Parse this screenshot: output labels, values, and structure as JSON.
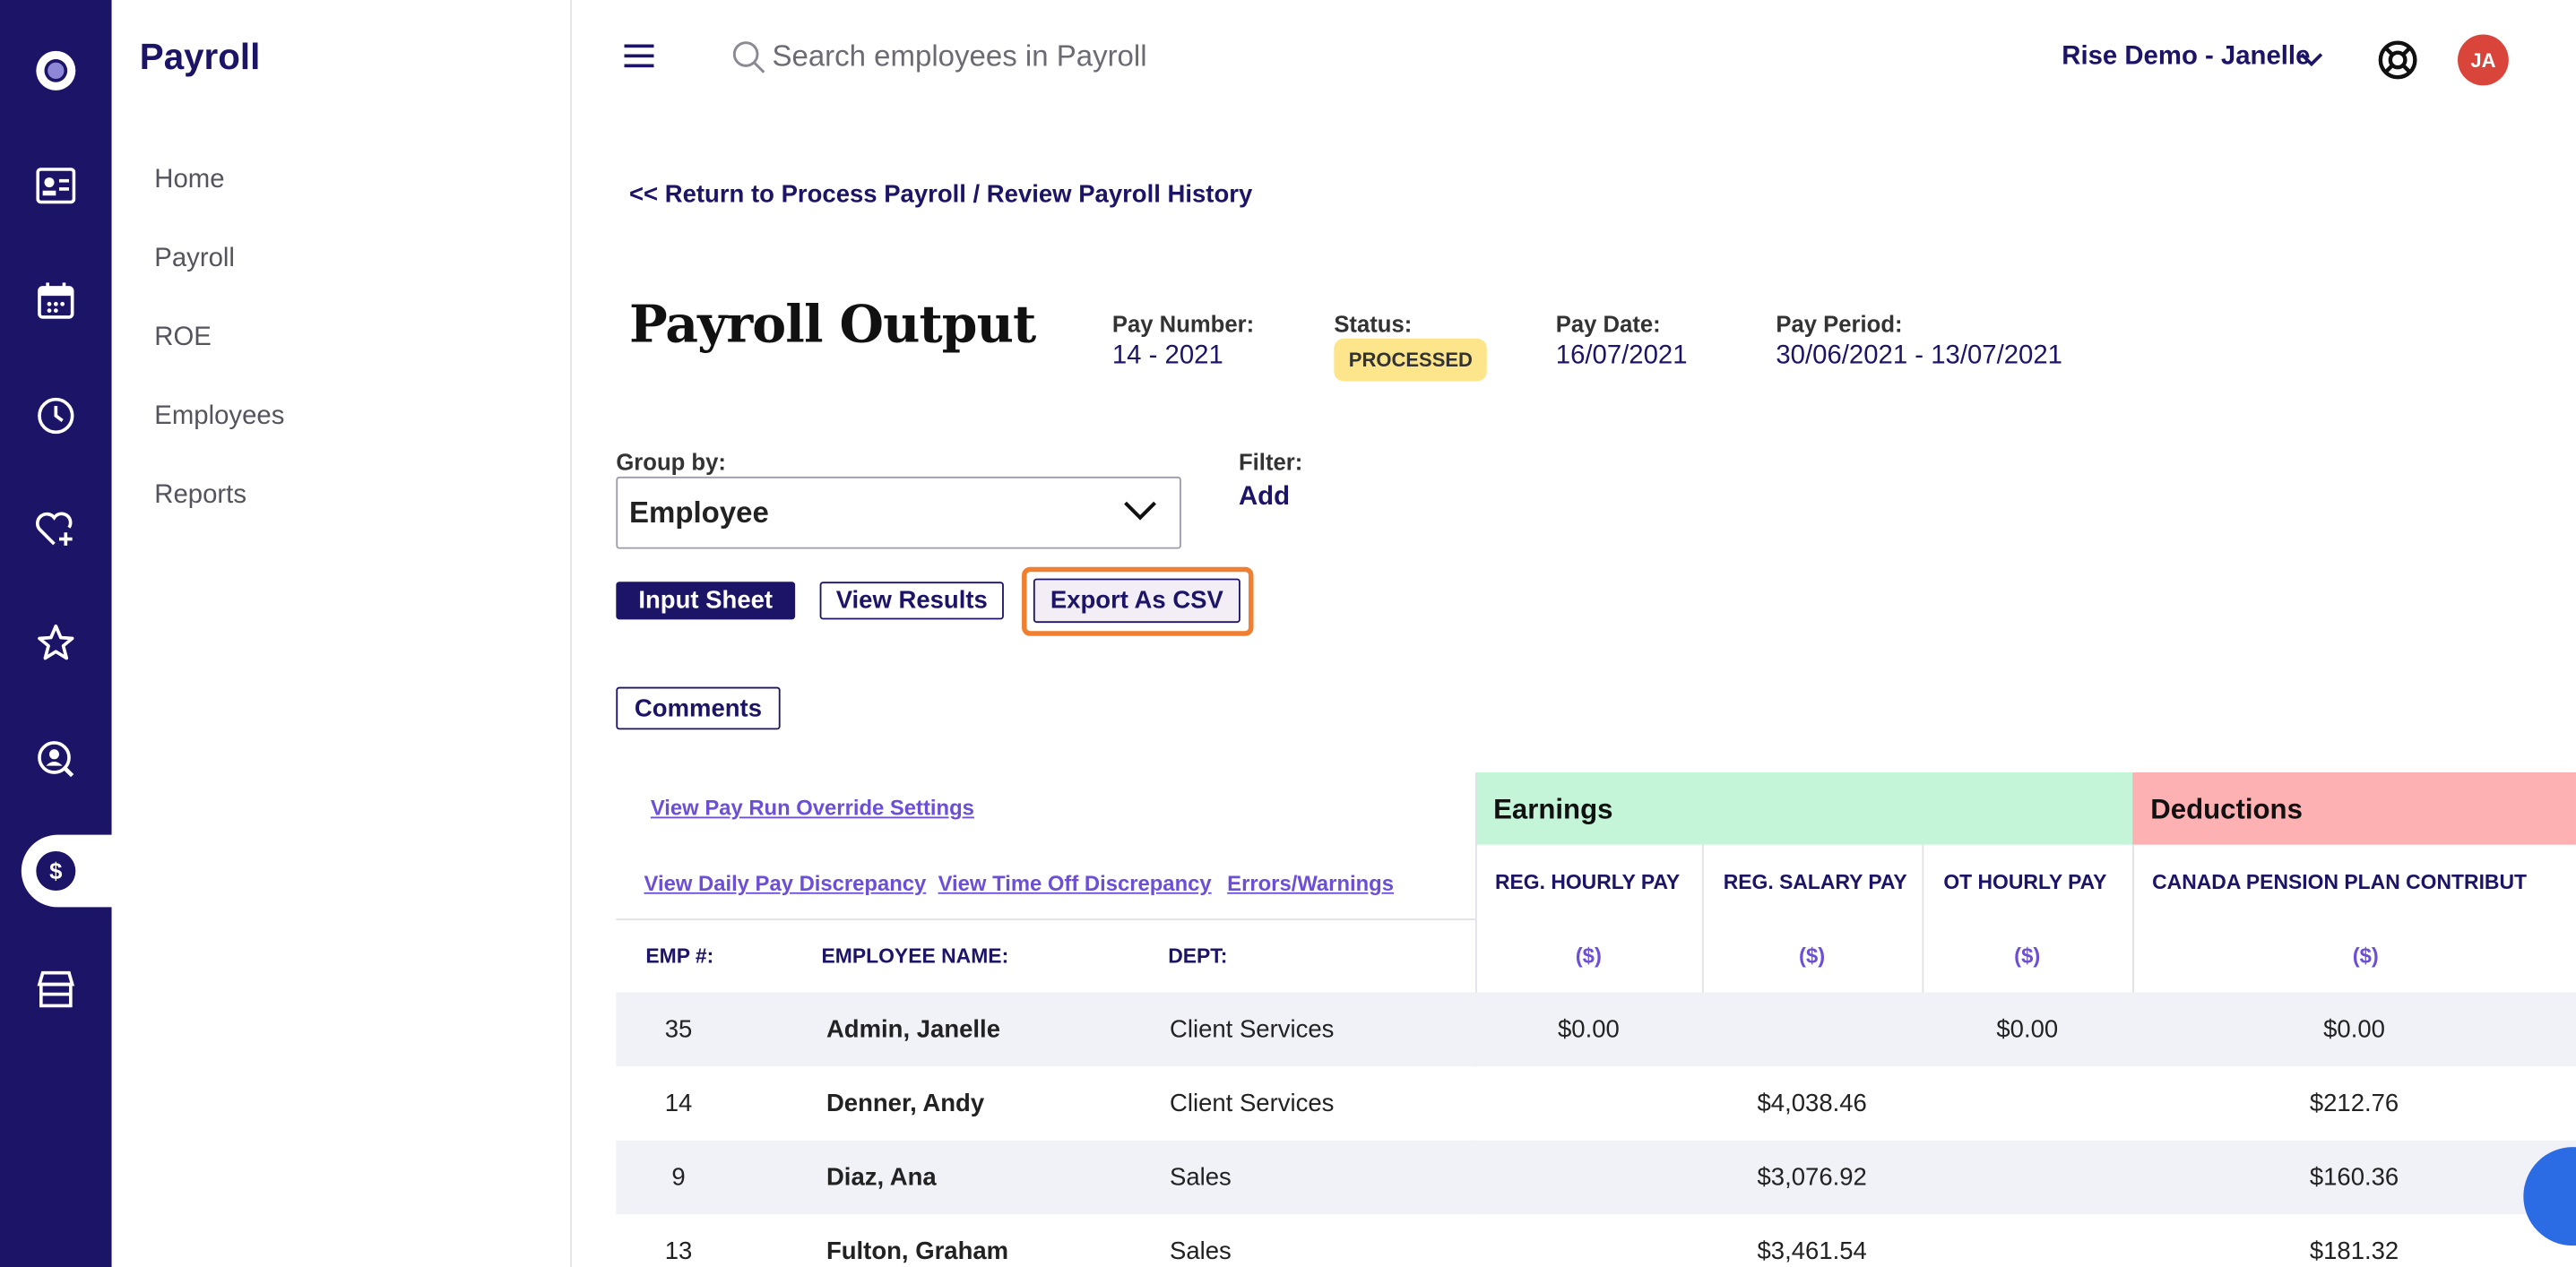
{
  "app": {
    "title": "Payroll"
  },
  "rail": {
    "active": "payroll-dollar-icon"
  },
  "nav": {
    "items": [
      "Home",
      "Payroll",
      "ROE",
      "Employees",
      "Reports"
    ]
  },
  "topbar": {
    "search_placeholder": "Search employees in Payroll",
    "account": "Rise Demo - Janelle",
    "avatar_initials": "JA"
  },
  "page": {
    "back_link": "<< Return to Process Payroll / Review Payroll History",
    "title": "Payroll Output",
    "pay_number_label": "Pay Number:",
    "pay_number": "14 - 2021",
    "status_label": "Status:",
    "status": "PROCESSED",
    "pay_date_label": "Pay Date:",
    "pay_date": "16/07/2021",
    "pay_period_label": "Pay Period:",
    "pay_period": "30/06/2021 - 13/07/2021"
  },
  "controls": {
    "group_by_label": "Group by:",
    "group_by_value": "Employee",
    "filter_label": "Filter:",
    "filter_add": "Add",
    "input_sheet": "Input Sheet",
    "view_results": "View Results",
    "export_csv": "Export As CSV",
    "comments": "Comments"
  },
  "table": {
    "links": {
      "override": "View Pay Run Override Settings",
      "daily": "View Daily Pay Discrepancy",
      "timeoff": "View Time Off Discrepancy",
      "errors": "Errors/Warnings"
    },
    "groups": {
      "earnings": "Earnings",
      "deductions": "Deductions"
    },
    "columns": {
      "emp_no": "EMP #:",
      "name": "EMPLOYEE NAME:",
      "dept": "DEPT:",
      "reg_hourly": "REG. HOURLY PAY",
      "reg_salary": "REG. SALARY PAY",
      "ot_hourly": "OT HOURLY PAY",
      "cpp": "CANADA PENSION PLAN CONTRIBUT",
      "unit": "($)"
    },
    "rows": [
      {
        "emp": "35",
        "name": "Admin, Janelle",
        "dept": "Client Services",
        "reg_hourly": "$0.00",
        "reg_salary": "",
        "ot_hourly": "$0.00",
        "cpp": "$0.00"
      },
      {
        "emp": "14",
        "name": "Denner, Andy",
        "dept": "Client Services",
        "reg_hourly": "",
        "reg_salary": "$4,038.46",
        "ot_hourly": "",
        "cpp": "$212.76"
      },
      {
        "emp": "9",
        "name": "Diaz, Ana",
        "dept": "Sales",
        "reg_hourly": "",
        "reg_salary": "$3,076.92",
        "ot_hourly": "",
        "cpp": "$160.36"
      },
      {
        "emp": "13",
        "name": "Fulton, Graham",
        "dept": "Sales",
        "reg_hourly": "",
        "reg_salary": "$3,461.54",
        "ot_hourly": "",
        "cpp": "$181.32"
      }
    ]
  },
  "colors": {
    "brand": "#1c1466",
    "earnings": "#c4f5d9",
    "deductions": "#fdb1b3",
    "status_badge": "#fce58a",
    "highlight": "#f07f30",
    "link": "#6c4fd6"
  }
}
